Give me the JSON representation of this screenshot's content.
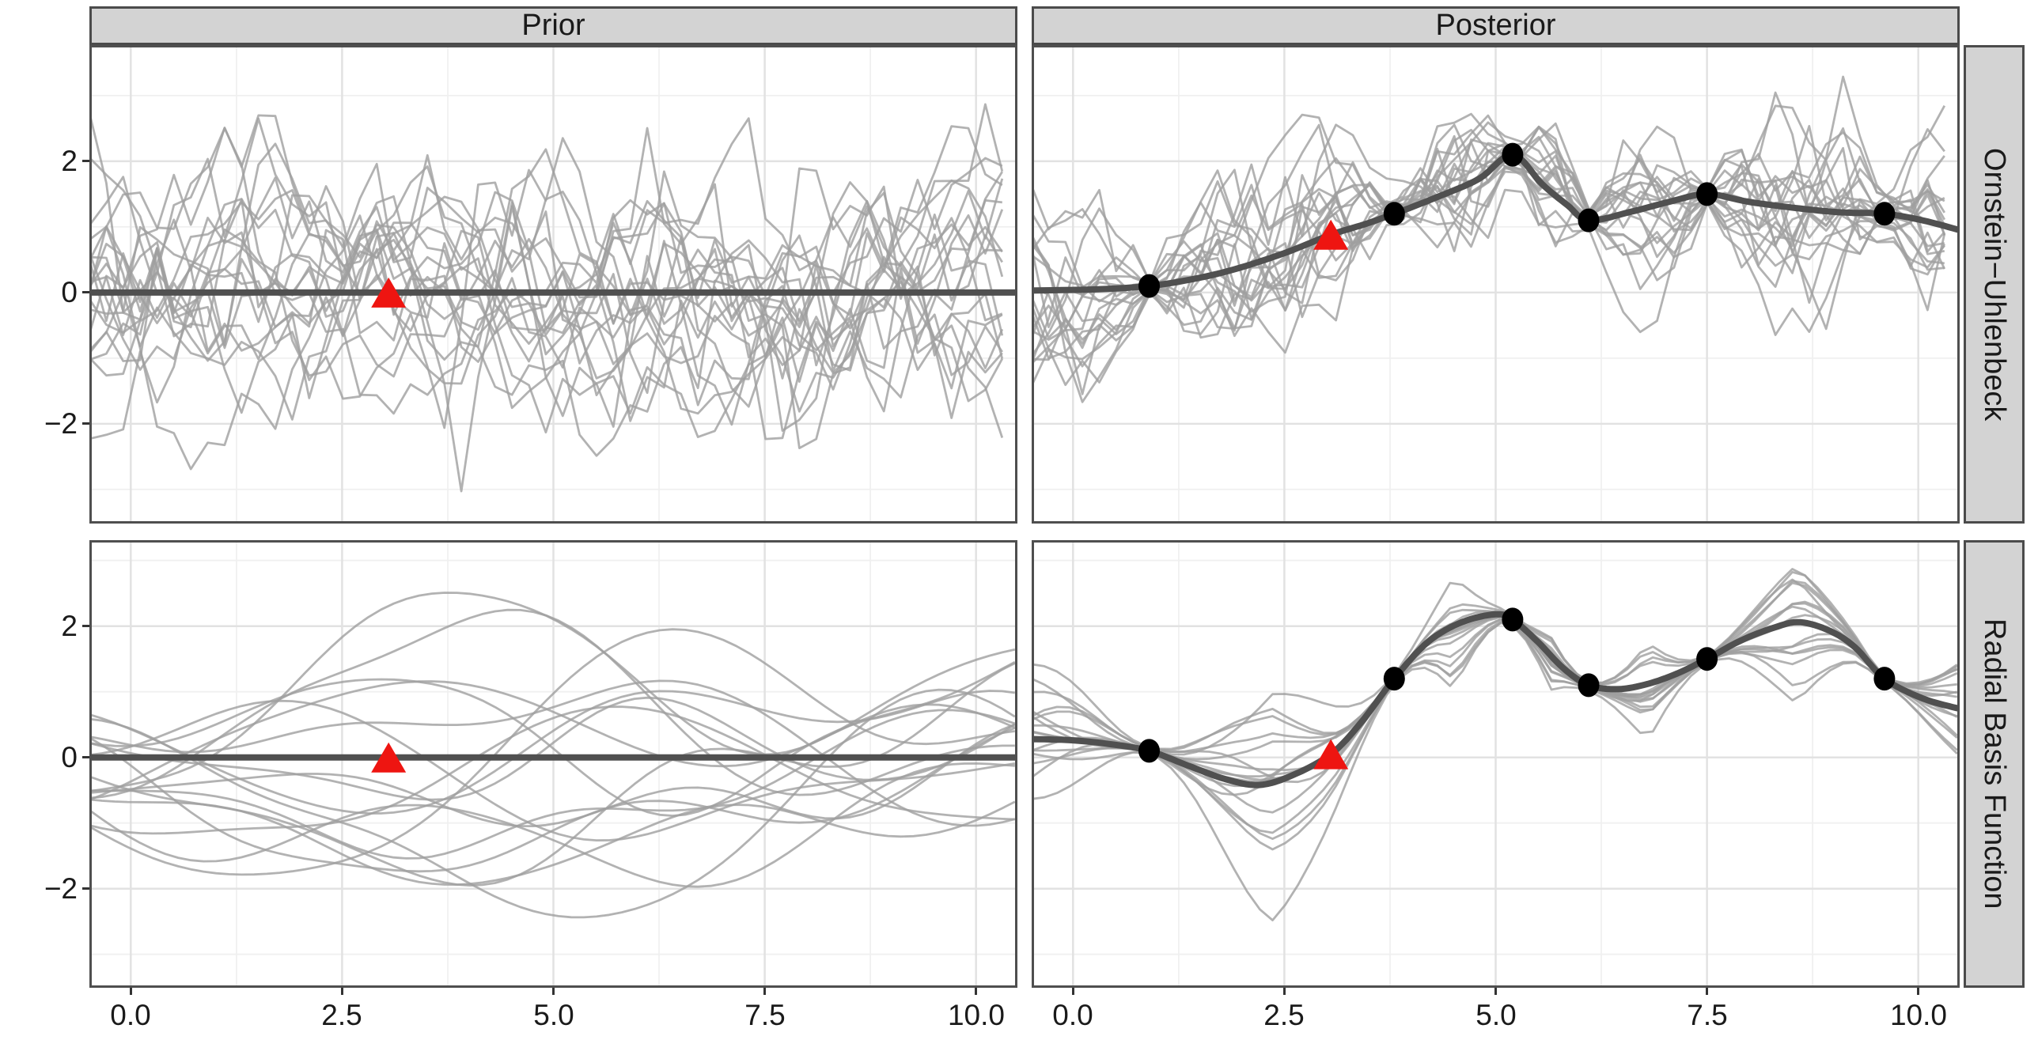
{
  "facets": {
    "columns": [
      {
        "label": "Prior"
      },
      {
        "label": "Posterior"
      }
    ],
    "rows": [
      {
        "label": "Ornstein−Uhlenbeck"
      },
      {
        "label": "Radial Basis Function"
      }
    ]
  },
  "axes": {
    "x": {
      "tick_labels": [
        "0.0",
        "2.5",
        "5.0",
        "7.5",
        "10.0"
      ],
      "tick_values": [
        0,
        2.5,
        5,
        7.5,
        10
      ],
      "minor_values": [
        1.25,
        3.75,
        6.25,
        8.75
      ],
      "range": [
        -0.49,
        10.49
      ]
    },
    "y_rows": [
      {
        "tick_labels": [
          "2",
          "0",
          "−2"
        ],
        "tick_values": [
          2,
          0,
          -2
        ],
        "minor_values": [
          -3,
          -1,
          1,
          3
        ],
        "range": [
          -3.52,
          3.77
        ]
      },
      {
        "tick_labels": [
          "2",
          "0",
          "−2"
        ],
        "tick_values": [
          2,
          0,
          -2
        ],
        "minor_values": [
          -3,
          -1,
          1,
          3
        ],
        "range": [
          -3.51,
          3.31
        ]
      }
    ]
  },
  "style": {
    "sample_line": "#9f9f9f",
    "sample_opacity": 0.8,
    "mean_line": "#505050",
    "point_fill": "#000000",
    "triangle_fill": "#ee1511",
    "strip_bg": "#d3d3d3",
    "strip_border": "#4b4b4b",
    "panel_border": "#4f4f4f",
    "grid_major": "#e2e2e2",
    "grid_minor": "#f0f0f0",
    "axis_text": "#1a1a1a"
  },
  "chart_data": {
    "type": "line",
    "layout": "2x2_facet_grid",
    "col_facets": [
      "Prior",
      "Posterior"
    ],
    "row_facets": [
      "Ornstein−Uhlenbeck",
      "Radial Basis Function"
    ],
    "xlim": [
      -0.49,
      10.49
    ],
    "grid": "major and minor, light gray on white",
    "observations": {
      "x": [
        0.9,
        3.8,
        5.2,
        6.1,
        7.5,
        9.6
      ],
      "y": [
        0.1,
        1.2,
        2.1,
        1.1,
        1.5,
        1.2
      ]
    },
    "test_point_x": 3.05,
    "panels": [
      {
        "row": "Ornstein−Uhlenbeck",
        "col": "Prior",
        "show_points": false,
        "triangle": [
          3.05,
          0
        ],
        "mean_curve": [
          [
            -0.49,
            0
          ],
          [
            10.49,
            0
          ]
        ],
        "samples": {
          "kernel": "ou",
          "n": 20,
          "seed": 42,
          "posterior": false
        }
      },
      {
        "row": "Ornstein−Uhlenbeck",
        "col": "Posterior",
        "show_points": true,
        "triangle": [
          3.05,
          0.88
        ],
        "mean_curve": [
          [
            -0.49,
            0.03
          ],
          [
            0.3,
            0.05
          ],
          [
            0.9,
            0.1
          ],
          [
            1.4,
            0.2
          ],
          [
            1.9,
            0.35
          ],
          [
            2.5,
            0.6
          ],
          [
            3.05,
            0.88
          ],
          [
            3.45,
            1.04
          ],
          [
            3.8,
            1.2
          ],
          [
            4.3,
            1.45
          ],
          [
            4.8,
            1.73
          ],
          [
            5.2,
            2.1
          ],
          [
            5.55,
            1.65
          ],
          [
            5.85,
            1.33
          ],
          [
            6.1,
            1.1
          ],
          [
            6.6,
            1.23
          ],
          [
            7.05,
            1.38
          ],
          [
            7.5,
            1.5
          ],
          [
            8.0,
            1.38
          ],
          [
            8.6,
            1.28
          ],
          [
            9.1,
            1.22
          ],
          [
            9.6,
            1.2
          ],
          [
            10.05,
            1.1
          ],
          [
            10.49,
            0.95
          ]
        ],
        "samples": {
          "kernel": "ou",
          "n": 20,
          "seed": 99,
          "posterior": true
        }
      },
      {
        "row": "Radial Basis Function",
        "col": "Prior",
        "show_points": false,
        "triangle": [
          3.05,
          0
        ],
        "mean_curve": [
          [
            -0.49,
            0
          ],
          [
            10.49,
            0
          ]
        ],
        "samples": {
          "kernel": "rbf",
          "n": 17,
          "seed": 7,
          "posterior": false
        }
      },
      {
        "row": "Radial Basis Function",
        "col": "Posterior",
        "show_points": true,
        "triangle": [
          3.05,
          0.05
        ],
        "mean_curve": [
          [
            -0.49,
            0.28
          ],
          [
            0.0,
            0.26
          ],
          [
            0.45,
            0.2
          ],
          [
            0.9,
            0.1
          ],
          [
            1.35,
            -0.12
          ],
          [
            1.8,
            -0.33
          ],
          [
            2.2,
            -0.42
          ],
          [
            2.6,
            -0.27
          ],
          [
            3.05,
            0.05
          ],
          [
            3.4,
            0.52
          ],
          [
            3.8,
            1.2
          ],
          [
            4.2,
            1.76
          ],
          [
            4.6,
            2.06
          ],
          [
            5.0,
            2.18
          ],
          [
            5.2,
            2.1
          ],
          [
            5.5,
            1.76
          ],
          [
            5.8,
            1.36
          ],
          [
            6.1,
            1.1
          ],
          [
            6.45,
            1.04
          ],
          [
            6.8,
            1.12
          ],
          [
            7.15,
            1.28
          ],
          [
            7.5,
            1.5
          ],
          [
            7.9,
            1.78
          ],
          [
            8.3,
            1.98
          ],
          [
            8.6,
            2.06
          ],
          [
            8.95,
            1.93
          ],
          [
            9.25,
            1.68
          ],
          [
            9.6,
            1.2
          ],
          [
            10.05,
            0.9
          ],
          [
            10.49,
            0.74
          ]
        ],
        "samples": {
          "kernel": "rbf",
          "n": 17,
          "seed": 513,
          "posterior": true
        }
      }
    ]
  }
}
